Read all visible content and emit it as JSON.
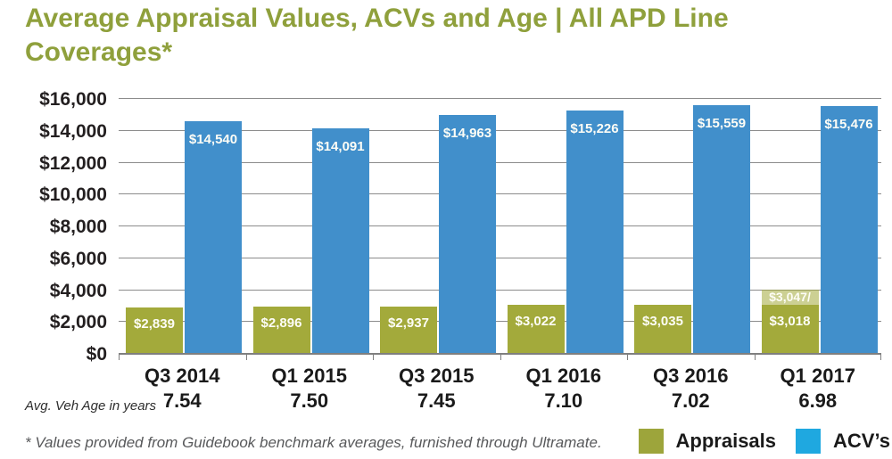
{
  "title": {
    "line1": "Average Appraisal Values, ACVs and Age  |  All APD Line",
    "line2": "Coverages*",
    "full": "Average Appraisal Values, ACVs and Age | All APD Line Coverages*"
  },
  "age_row_label": "Avg. Veh Age in years",
  "footnote": "* Values provided from Guidebook benchmark averages, furnished through Ultramate.",
  "legend": [
    {
      "label": "Appraisals",
      "color": "#9da53b"
    },
    {
      "label": "ACV’s",
      "color": "#1fa8e0"
    }
  ],
  "colors": {
    "title": "#8fa03c",
    "appraisal_bar": "#a3aa3b",
    "acv_bar": "#418fcb",
    "appraisal_overlay": "rgba(163,170,59,0.55)",
    "gridline": "#8c8c8c",
    "axis_text": "#231f20",
    "bar_label_text": "#fdfdf6"
  },
  "chart_data": {
    "type": "bar",
    "title": "Average Appraisal Values, ACVs and Age | All APD Line Coverages*",
    "categories": [
      "Q3 2014",
      "Q1 2015",
      "Q3 2015",
      "Q1 2016",
      "Q3 2016",
      "Q1 2017"
    ],
    "avg_veh_age_years": [
      "7.54",
      "7.50",
      "7.45",
      "7.10",
      "7.02",
      "6.98"
    ],
    "series": [
      {
        "name": "Appraisals",
        "color": "#a3aa3b",
        "values": [
          2839,
          2896,
          2937,
          3022,
          3035,
          3018
        ],
        "labels": [
          "$2,839",
          "$2,896",
          "$2,937",
          "$3,022",
          "$3,035",
          "$3,018"
        ],
        "overlay_labels": [
          null,
          null,
          null,
          null,
          null,
          "$3,047/"
        ]
      },
      {
        "name": "ACV’s",
        "color": "#418fcb",
        "values": [
          14540,
          14091,
          14963,
          15226,
          15559,
          15476
        ],
        "labels": [
          "$14,540",
          "$14,091",
          "$14,963",
          "$15,226",
          "$15,559",
          "$15,476"
        ]
      }
    ],
    "xlabel": "",
    "ylabel": "",
    "ylim": [
      0,
      16000
    ],
    "ytick_step": 2000,
    "ytick_labels": [
      "$0",
      "$2,000",
      "$4,000",
      "$6,000",
      "$8,000",
      "$10,000",
      "$12,000",
      "$14,000",
      "$16,000"
    ],
    "grid": true,
    "legend_position": "bottom-right"
  }
}
